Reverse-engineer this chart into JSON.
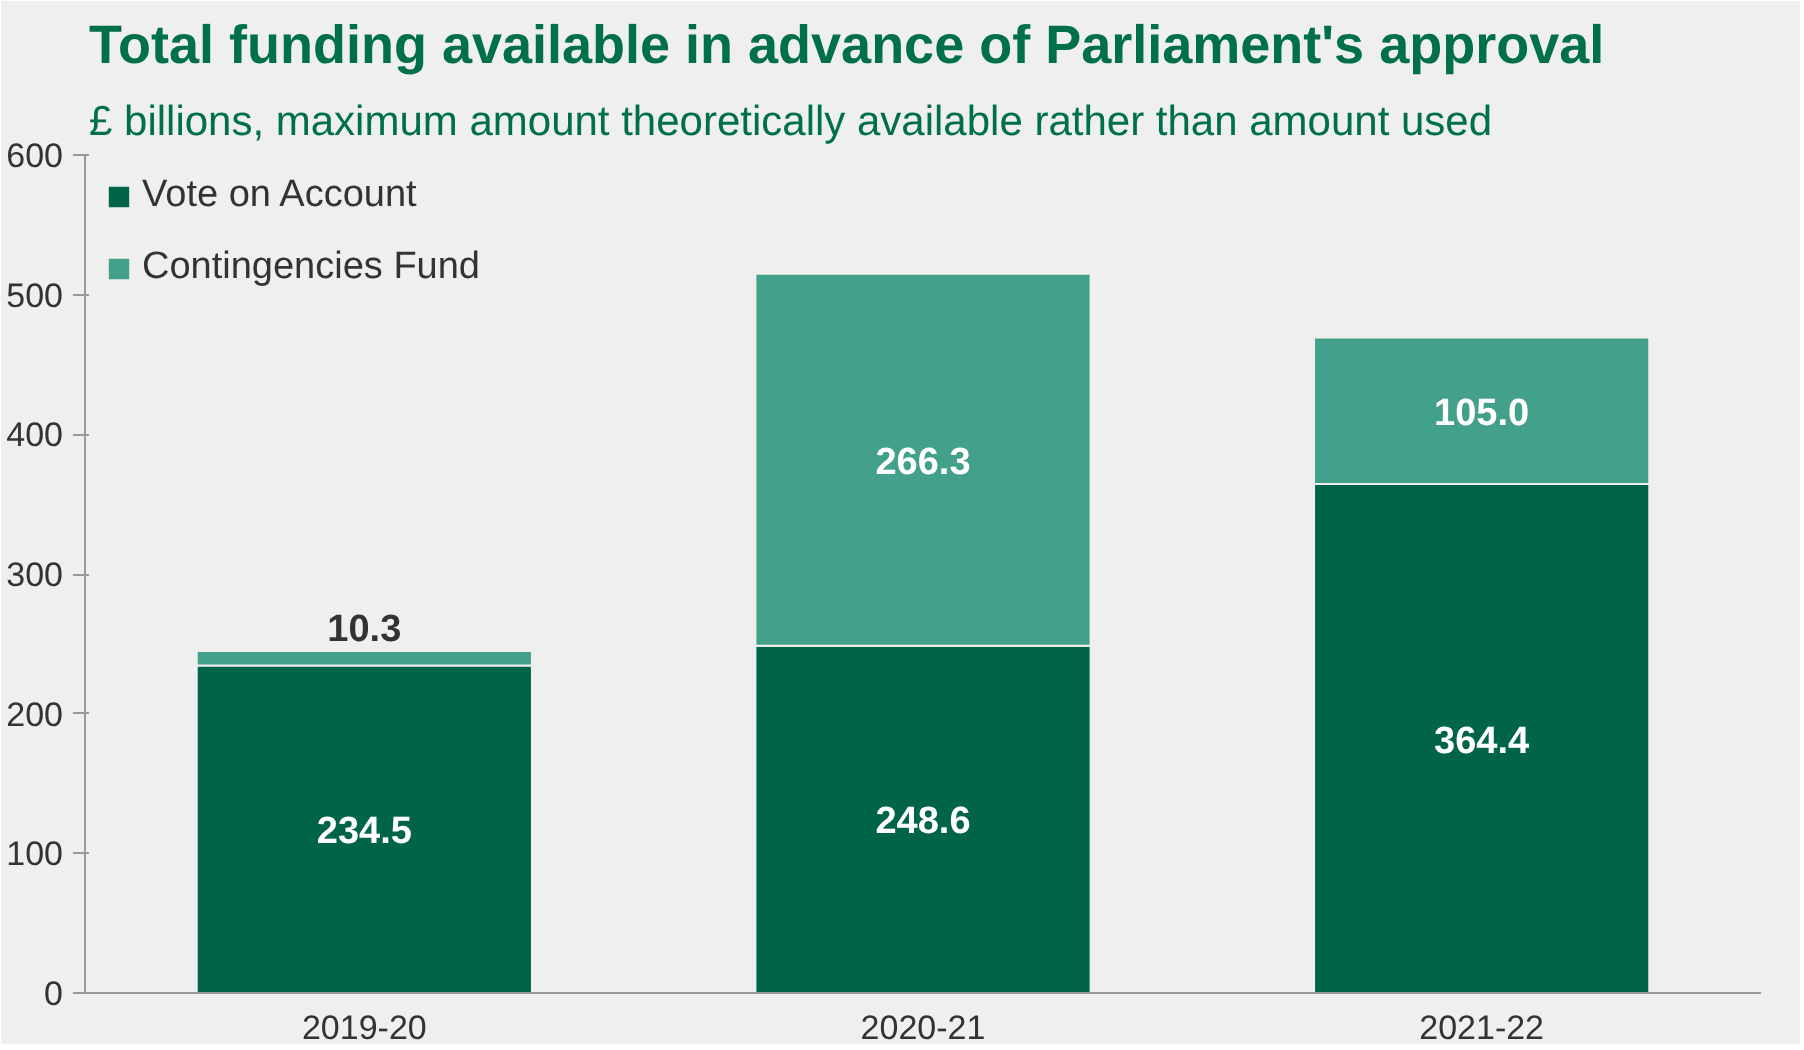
{
  "chart_data": {
    "type": "bar",
    "title": "Total funding available in advance of Parliament's approval",
    "subtitle": "£ billions, maximum amount theoretically available rather than amount used",
    "categories": [
      "2019-20",
      "2020-21",
      "2021-22"
    ],
    "stacked": true,
    "series": [
      {
        "name": "Vote on Account",
        "color": "#006548",
        "values": [
          234.5,
          248.6,
          364.4
        ],
        "value_labels": [
          "234.5",
          "248.6",
          "364.4"
        ]
      },
      {
        "name": "Contingencies Fund",
        "color": "#43a08a",
        "values": [
          10.3,
          266.3,
          105.0
        ],
        "value_labels": [
          "10.3",
          "266.3",
          "105.0"
        ]
      }
    ],
    "ylim": [
      0,
      600
    ],
    "yticks": [
      0,
      100,
      200,
      300,
      400,
      500,
      600
    ],
    "grid": false,
    "legend": "top left"
  }
}
